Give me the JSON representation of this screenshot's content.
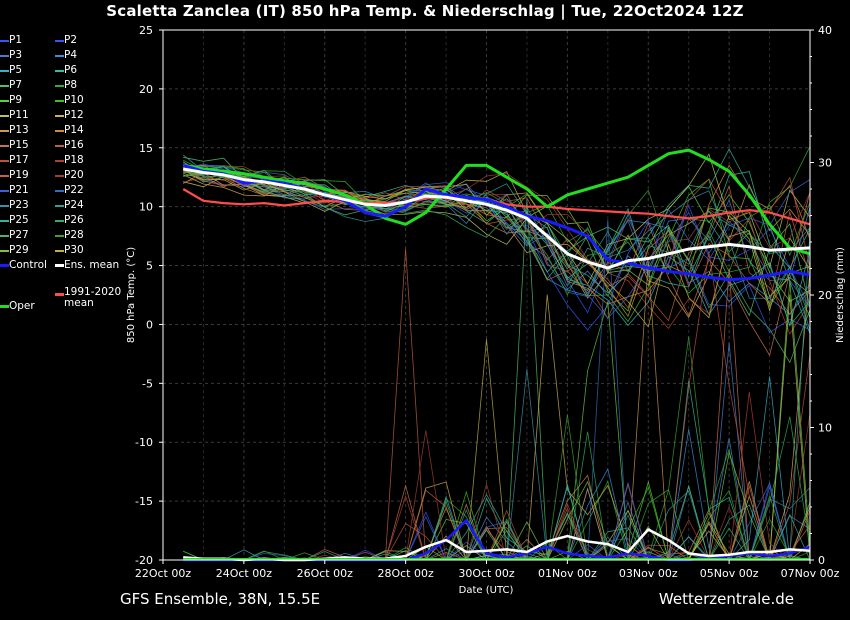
{
  "header": {
    "title": "Scaletta Zanclea  (IT)  850 hPa Temp. & Niederschlag | Tue, 22Oct2024 12Z"
  },
  "footer": {
    "left": "GFS Ensemble, 38N, 15.5E",
    "right": "Wetterzentrale.de"
  },
  "colors": {
    "background": "#000000",
    "grid": "#3a3a3a",
    "control": "#1a1aff",
    "ens_mean": "#ffffff",
    "climate_mean": "#ff4d4d",
    "oper": "#22dd22"
  },
  "legend": {
    "members": [
      {
        "label": "P1",
        "color": "#3355ff"
      },
      {
        "label": "P2",
        "color": "#3355ff"
      },
      {
        "label": "P3",
        "color": "#4a7fcf"
      },
      {
        "label": "P4",
        "color": "#3a8fe0"
      },
      {
        "label": "P5",
        "color": "#3ab0c8"
      },
      {
        "label": "P6",
        "color": "#30c0a0"
      },
      {
        "label": "P7",
        "color": "#50c070"
      },
      {
        "label": "P8",
        "color": "#30b030"
      },
      {
        "label": "P9",
        "color": "#60d040"
      },
      {
        "label": "P10",
        "color": "#40c020"
      },
      {
        "label": "P11",
        "color": "#c0c060"
      },
      {
        "label": "P12",
        "color": "#d0b050"
      },
      {
        "label": "P13",
        "color": "#d09a50"
      },
      {
        "label": "P14",
        "color": "#d08a40"
      },
      {
        "label": "P15",
        "color": "#c87050"
      },
      {
        "label": "P16",
        "color": "#c06040"
      },
      {
        "label": "P17",
        "color": "#c05040"
      },
      {
        "label": "P18",
        "color": "#b04030"
      },
      {
        "label": "P19",
        "color": "#c86040"
      },
      {
        "label": "P20",
        "color": "#a04030"
      },
      {
        "label": "P21",
        "color": "#4060d0"
      },
      {
        "label": "P22",
        "color": "#3070c0"
      },
      {
        "label": "P23",
        "color": "#3a90a8"
      },
      {
        "label": "P24",
        "color": "#30a090"
      },
      {
        "label": "P25",
        "color": "#38b098"
      },
      {
        "label": "P26",
        "color": "#30b060"
      },
      {
        "label": "P27",
        "color": "#50b070"
      },
      {
        "label": "P28",
        "color": "#40a030"
      },
      {
        "label": "P29",
        "color": "#80c040"
      },
      {
        "label": "P30",
        "color": "#c0b040"
      }
    ],
    "control": "Control",
    "ens_mean": "Ens. mean",
    "climate_mean": "1991-2020 mean",
    "oper": "Oper"
  },
  "chart_data": {
    "type": "line",
    "xlabel": "Date (UTC)",
    "ylabel": "850 hPa Temp. (°C)",
    "y2label": "Niederschlag (mm)",
    "ylim": [
      -20,
      25
    ],
    "y2lim": [
      0,
      40
    ],
    "xlim_hours": [
      0,
      384
    ],
    "yticks": [
      25,
      20,
      15,
      10,
      5,
      0,
      -5,
      -10,
      -15,
      -20
    ],
    "y2ticks": [
      40,
      30,
      20,
      10,
      0
    ],
    "xticks": [
      {
        "label": "22Oct 00z",
        "hour": 0
      },
      {
        "label": "24Oct 00z",
        "hour": 48
      },
      {
        "label": "26Oct 00z",
        "hour": 96
      },
      {
        "label": "28Oct 00z",
        "hour": 144
      },
      {
        "label": "30Oct 00z",
        "hour": 192
      },
      {
        "label": "01Nov 00z",
        "hour": 240
      },
      {
        "label": "03Nov 00z",
        "hour": 288
      },
      {
        "label": "05Nov 00z",
        "hour": 336
      },
      {
        "label": "07Nov 00z",
        "hour": 384
      }
    ],
    "grid": true,
    "temperature": {
      "hours": [
        12,
        24,
        36,
        48,
        60,
        72,
        84,
        96,
        108,
        120,
        132,
        144,
        156,
        168,
        180,
        192,
        204,
        216,
        228,
        240,
        252,
        264,
        276,
        288,
        300,
        312,
        324,
        336,
        348,
        360,
        372,
        384
      ],
      "control": [
        13.5,
        13.0,
        12.8,
        12.0,
        12.2,
        12.0,
        11.5,
        11.0,
        10.5,
        9.5,
        9.2,
        10.0,
        11.5,
        11.0,
        10.8,
        10.6,
        10.0,
        9.2,
        8.8,
        8.2,
        7.5,
        5.5,
        5.2,
        4.8,
        4.5,
        4.3,
        4.0,
        3.8,
        3.9,
        4.2,
        4.5,
        4.2
      ],
      "ens_mean": [
        13.2,
        12.9,
        12.7,
        12.3,
        12.1,
        11.8,
        11.5,
        11.0,
        10.6,
        10.2,
        10.1,
        10.4,
        10.9,
        10.8,
        10.5,
        10.2,
        9.7,
        9.0,
        7.5,
        6.0,
        5.3,
        4.8,
        5.4,
        5.6,
        6.0,
        6.4,
        6.6,
        6.8,
        6.6,
        6.3,
        6.4,
        6.5
      ],
      "climate_mean": [
        11.5,
        10.5,
        10.3,
        10.2,
        10.3,
        10.1,
        10.3,
        10.5,
        10.4,
        10.3,
        10.3,
        10.4,
        10.7,
        10.8,
        10.8,
        10.6,
        10.2,
        10.0,
        10.0,
        9.8,
        9.7,
        9.6,
        9.5,
        9.4,
        9.2,
        9.0,
        9.2,
        9.5,
        9.7,
        9.5,
        9.0,
        8.5
      ],
      "oper": [
        13.5,
        13.2,
        13.0,
        12.8,
        12.5,
        12.2,
        12.0,
        11.5,
        11.0,
        10.2,
        9.0,
        8.5,
        9.5,
        11.5,
        13.5,
        13.5,
        12.5,
        11.5,
        10.0,
        11.0,
        11.5,
        12.0,
        12.5,
        13.5,
        14.5,
        14.8,
        14.0,
        13.0,
        11.0,
        8.5,
        6.5,
        6.0
      ]
    },
    "precipitation_mm": {
      "hours": [
        12,
        24,
        36,
        48,
        60,
        72,
        84,
        96,
        108,
        120,
        132,
        144,
        156,
        168,
        180,
        192,
        204,
        216,
        228,
        240,
        252,
        264,
        276,
        288,
        300,
        312,
        324,
        336,
        348,
        360,
        372,
        384
      ],
      "control": [
        0,
        0,
        0,
        0,
        0,
        0,
        0,
        0,
        0,
        0,
        0,
        0,
        0.5,
        1.5,
        3.0,
        0.5,
        0.2,
        0.5,
        1.0,
        0.5,
        0.3,
        0.2,
        0.5,
        0.3,
        0,
        0,
        0.2,
        0.3,
        0.5,
        0.3,
        0.5,
        1.0
      ],
      "ens_mean": [
        0.2,
        0.1,
        0.1,
        0,
        0.1,
        0,
        0,
        0.1,
        0.2,
        0.1,
        0.1,
        0.3,
        1.0,
        1.5,
        0.6,
        0.7,
        0.8,
        0.6,
        1.4,
        1.8,
        1.4,
        1.2,
        0.6,
        2.3,
        1.5,
        0.5,
        0.3,
        0.4,
        0.6,
        0.6,
        0.8,
        0.7
      ]
    }
  }
}
